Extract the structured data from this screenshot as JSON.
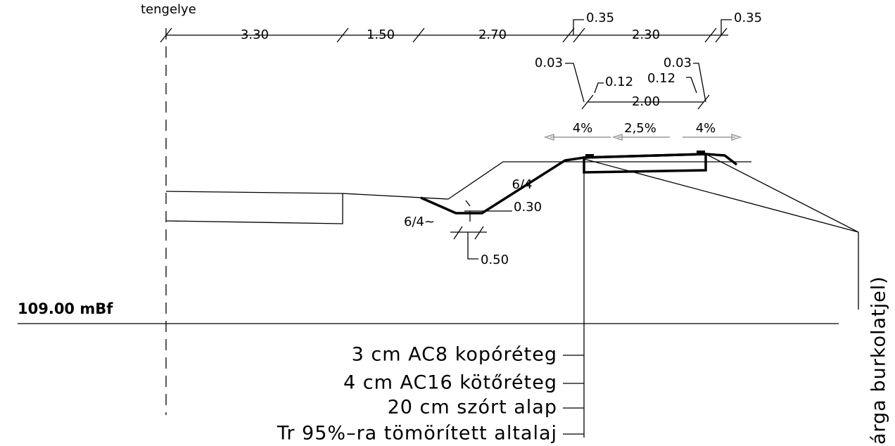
{
  "axis_label": "tengelye",
  "top_dimensions": [
    "3.30",
    "1.50",
    "2.70",
    "0.35",
    "2.30",
    "0.35"
  ],
  "curb_dimensions": [
    "0.03",
    "0.12",
    "0.12",
    "0.03",
    "2.00"
  ],
  "slopes": [
    "4%",
    "2,5%",
    "4%"
  ],
  "ditch": {
    "slope_right": "6/4",
    "depth": "0.30",
    "slope_left": "6/4~",
    "width": "0.50"
  },
  "elevation": "109.00 mBf",
  "layers": [
    "3 cm AC8 kopóréteg",
    "4 cm AC16 kötőréteg",
    "20 cm szórt alap",
    "Tr 95%–ra tömörített altalaj"
  ],
  "side_note": "árga burkolatjel)"
}
